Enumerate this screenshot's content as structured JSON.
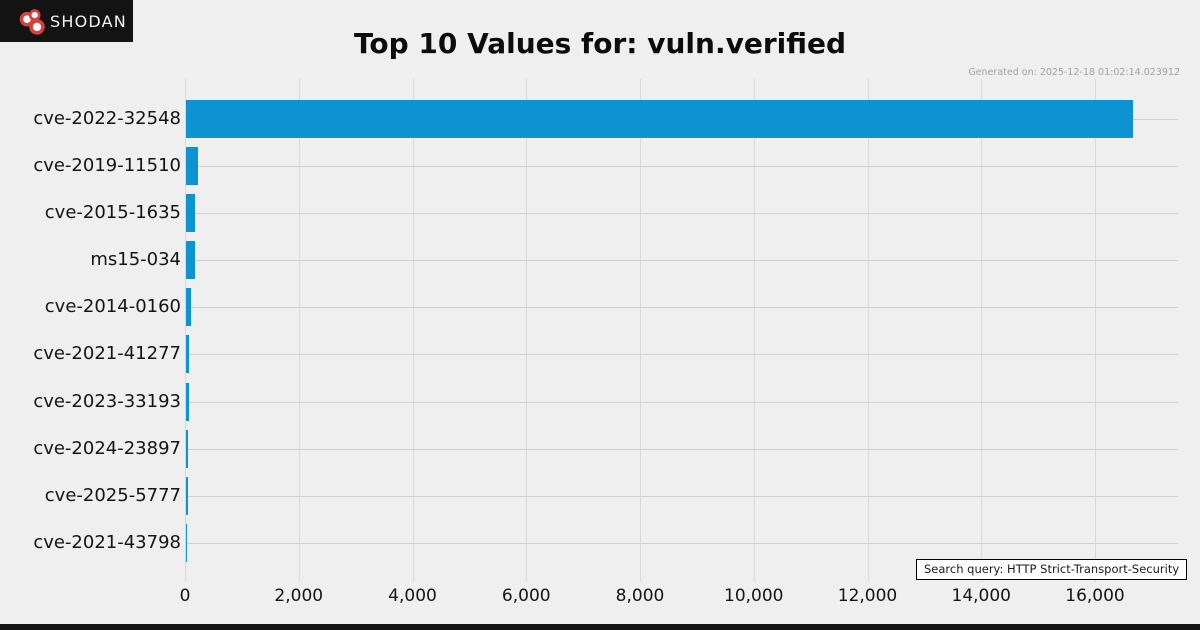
{
  "header": {
    "logo_text": "SHODAN",
    "generated_on": "Generated on: 2025-12-18 01:02:14.023912"
  },
  "chart_data": {
    "type": "bar",
    "orientation": "horizontal",
    "title": "Top 10 Values for: vuln.verified",
    "categories": [
      "cve-2022-32548",
      "cve-2019-11510",
      "cve-2015-1635",
      "ms15-034",
      "cve-2014-0160",
      "cve-2021-41277",
      "cve-2023-33193",
      "cve-2024-23897",
      "cve-2025-5777",
      "cve-2021-43798"
    ],
    "values": [
      16650,
      210,
      160,
      160,
      95,
      50,
      50,
      35,
      35,
      8
    ],
    "x_ticks": [
      "0",
      "2,000",
      "4,000",
      "6,000",
      "8,000",
      "10,000",
      "12,000",
      "14,000",
      "16,000"
    ],
    "xlim": [
      0,
      17460
    ],
    "xlabel": "",
    "ylabel": "",
    "grid": true,
    "legend": false,
    "bar_color": "#0d93d2"
  },
  "footer": {
    "search_query": "Search query: HTTP Strict-Transport-Security"
  },
  "colors": {
    "background": "#efefef",
    "logo_background": "#131313",
    "logo_red": "#d6423b",
    "accent_blue": "#0d93d2",
    "grid_vertical": "#d9d9d9",
    "grid_horizontal": "#d0d0d0",
    "generated_text": "#a1a1a1",
    "footer_bar": "#131313"
  }
}
